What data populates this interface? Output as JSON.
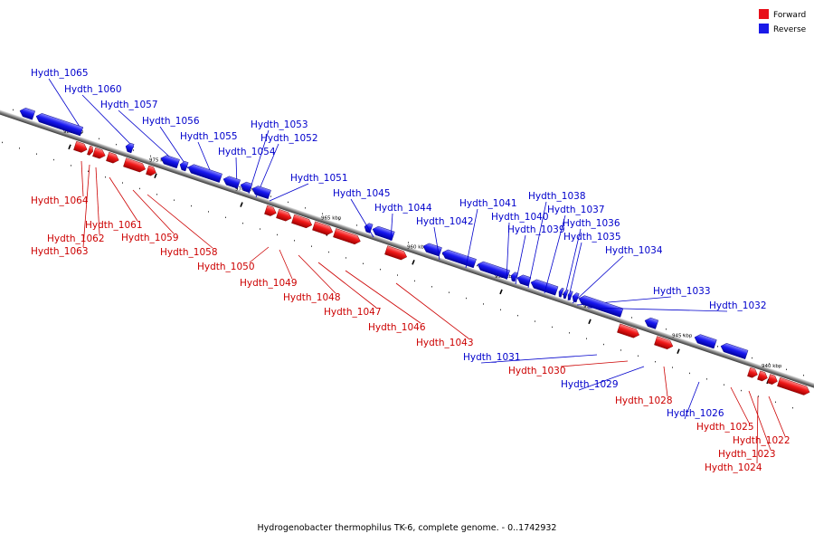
{
  "legend": [
    {
      "name": "Forward",
      "color": "#e8101a"
    },
    {
      "name": "Reverse",
      "color": "#1a1ae8"
    }
  ],
  "caption": "Hydrogenobacter thermophilus TK-6, complete genome. - 0..1742932",
  "ticks": [
    "980 kbp",
    "975 kbp",
    "970 kbp",
    "965 kbp",
    "960 kbp",
    "955 kbp",
    "950 kbp",
    "945 kbp",
    "940 kbp"
  ],
  "genes": [
    {
      "name": "Hydth_1065",
      "strand": "reverse"
    },
    {
      "name": "Hydth_1064",
      "strand": "forward"
    },
    {
      "name": "Hydth_1063",
      "strand": "forward"
    },
    {
      "name": "Hydth_1062",
      "strand": "forward"
    },
    {
      "name": "Hydth_1061",
      "strand": "forward"
    },
    {
      "name": "Hydth_1060",
      "strand": "reverse"
    },
    {
      "name": "Hydth_1059",
      "strand": "forward"
    },
    {
      "name": "Hydth_1058",
      "strand": "forward"
    },
    {
      "name": "Hydth_1057",
      "strand": "reverse"
    },
    {
      "name": "Hydth_1056",
      "strand": "reverse"
    },
    {
      "name": "Hydth_1055",
      "strand": "reverse"
    },
    {
      "name": "Hydth_1054",
      "strand": "reverse"
    },
    {
      "name": "Hydth_1053",
      "strand": "reverse"
    },
    {
      "name": "Hydth_1052",
      "strand": "reverse"
    },
    {
      "name": "Hydth_1051",
      "strand": "reverse"
    },
    {
      "name": "Hydth_1050",
      "strand": "forward"
    },
    {
      "name": "Hydth_1049",
      "strand": "forward"
    },
    {
      "name": "Hydth_1048",
      "strand": "forward"
    },
    {
      "name": "Hydth_1047",
      "strand": "forward"
    },
    {
      "name": "Hydth_1046",
      "strand": "forward"
    },
    {
      "name": "Hydth_1045",
      "strand": "reverse"
    },
    {
      "name": "Hydth_1044",
      "strand": "reverse"
    },
    {
      "name": "Hydth_1043",
      "strand": "forward"
    },
    {
      "name": "Hydth_1042",
      "strand": "reverse"
    },
    {
      "name": "Hydth_1041",
      "strand": "reverse"
    },
    {
      "name": "Hydth_1040",
      "strand": "reverse"
    },
    {
      "name": "Hydth_1039",
      "strand": "reverse"
    },
    {
      "name": "Hydth_1038",
      "strand": "reverse"
    },
    {
      "name": "Hydth_1037",
      "strand": "reverse"
    },
    {
      "name": "Hydth_1036",
      "strand": "reverse"
    },
    {
      "name": "Hydth_1035",
      "strand": "reverse"
    },
    {
      "name": "Hydth_1034",
      "strand": "reverse"
    },
    {
      "name": "Hydth_1033",
      "strand": "reverse"
    },
    {
      "name": "Hydth_1032",
      "strand": "reverse"
    },
    {
      "name": "Hydth_1031",
      "strand": "reverse"
    },
    {
      "name": "Hydth_1030",
      "strand": "forward"
    },
    {
      "name": "Hydth_1029",
      "strand": "reverse"
    },
    {
      "name": "Hydth_1028",
      "strand": "forward"
    },
    {
      "name": "Hydth_1026",
      "strand": "reverse"
    },
    {
      "name": "Hydth_1025",
      "strand": "forward"
    },
    {
      "name": "Hydth_1024",
      "strand": "forward"
    },
    {
      "name": "Hydth_1023",
      "strand": "forward"
    },
    {
      "name": "Hydth_1022",
      "strand": "forward"
    }
  ]
}
